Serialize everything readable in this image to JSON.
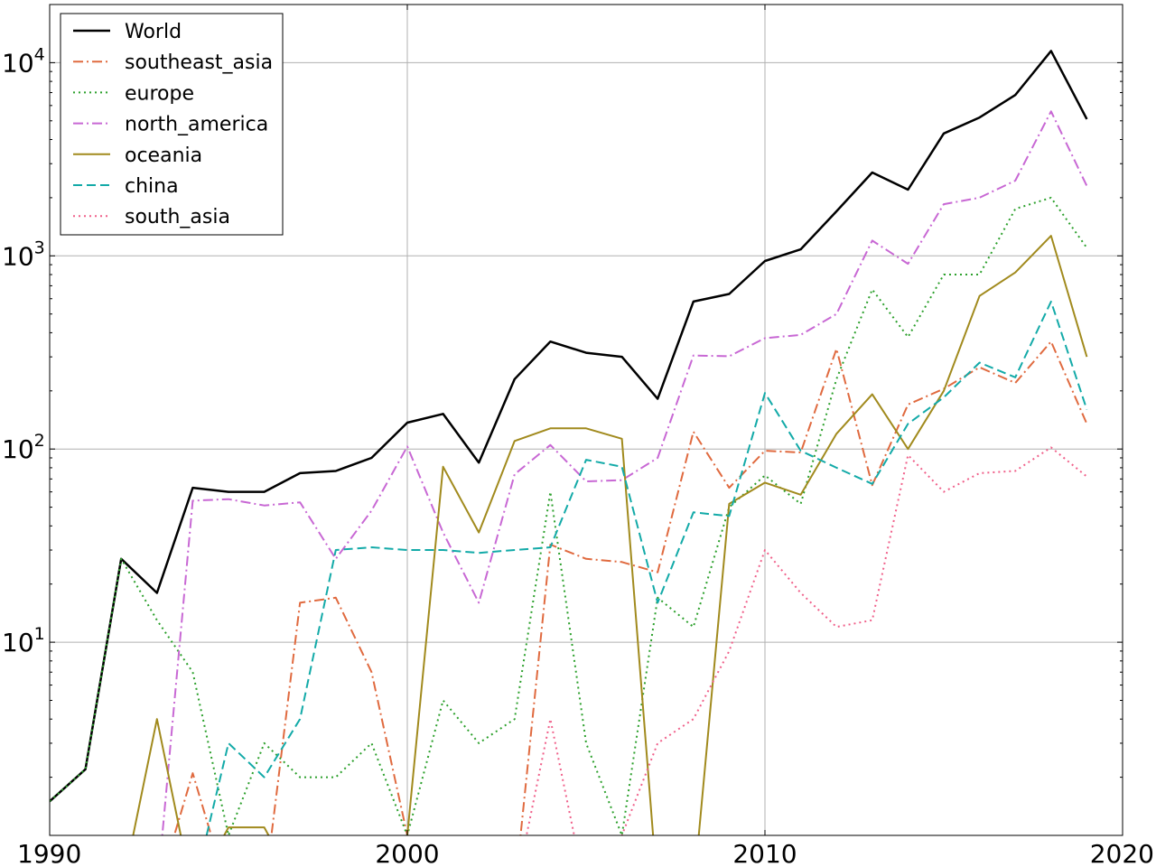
{
  "chart_data": {
    "type": "line",
    "title": "",
    "xlabel": "",
    "ylabel": "",
    "xlim": [
      1990,
      2020
    ],
    "ylim": [
      1,
      20000
    ],
    "yscale": "log",
    "grid": true,
    "legend_position": "top-left",
    "x_ticks": [
      {
        "value": 1990,
        "label": "1990"
      },
      {
        "value": 2000,
        "label": "2000"
      },
      {
        "value": 2010,
        "label": "2010"
      },
      {
        "value": 2020,
        "label": "2020"
      }
    ],
    "y_ticks": [
      {
        "value": 10,
        "base": "10",
        "exp": "1"
      },
      {
        "value": 100,
        "base": "10",
        "exp": "2"
      },
      {
        "value": 1000,
        "base": "10",
        "exp": "3"
      },
      {
        "value": 10000,
        "base": "10",
        "exp": "4"
      }
    ],
    "x": [
      1990,
      1991,
      1992,
      1993,
      1994,
      1995,
      1996,
      1997,
      1998,
      1999,
      2000,
      2001,
      2002,
      2003,
      2004,
      2005,
      2006,
      2007,
      2008,
      2009,
      2010,
      2011,
      2012,
      2013,
      2014,
      2015,
      2016,
      2017,
      2018,
      2019
    ],
    "series": [
      {
        "name": "World",
        "color": "#000000",
        "style": "solid",
        "width": 2.5,
        "values": [
          1.5,
          2.2,
          27,
          18,
          63,
          60,
          60,
          75,
          77,
          90,
          137,
          152,
          85,
          230,
          360,
          315,
          300,
          182,
          580,
          635,
          940,
          1080,
          1700,
          2700,
          2200,
          4300,
          5200,
          6800,
          11500,
          5100
        ]
      },
      {
        "name": "southeast_asia",
        "color": "#e06a3f",
        "style": "dashdot",
        "width": 2,
        "values": [
          null,
          null,
          null,
          null,
          2.1,
          null,
          null,
          16,
          17,
          7,
          1,
          null,
          null,
          null,
          32,
          27,
          26,
          23,
          123,
          63,
          98,
          96,
          330,
          65,
          170,
          205,
          265,
          220,
          360,
          135
        ]
      },
      {
        "name": "europe",
        "color": "#2ca02c",
        "style": "dotted",
        "width": 2,
        "values": [
          1.5,
          2.2,
          27,
          13,
          7,
          1,
          3,
          2,
          2,
          3,
          1,
          5,
          3,
          4,
          60,
          3,
          1,
          17,
          12,
          50,
          73,
          52,
          230,
          670,
          380,
          800,
          800,
          1750,
          2000,
          1100
        ]
      },
      {
        "name": "north_america",
        "color": "#c868d4",
        "style": "dashdot",
        "width": 2,
        "values": [
          null,
          null,
          null,
          null,
          54,
          55,
          51,
          53,
          27,
          48,
          103,
          37,
          16,
          74,
          105,
          68,
          69,
          90,
          305,
          302,
          375,
          390,
          500,
          1200,
          910,
          1850,
          2000,
          2450,
          5600,
          2300
        ]
      },
      {
        "name": "oceania",
        "color": "#a18a1d",
        "style": "solid",
        "width": 2,
        "values": [
          null,
          null,
          null,
          4,
          null,
          1.1,
          1.1,
          null,
          null,
          null,
          1,
          81,
          37,
          110,
          128,
          128,
          113,
          null,
          null,
          52,
          67,
          58,
          120,
          192,
          100,
          200,
          620,
          820,
          1270,
          300
        ]
      },
      {
        "name": "china",
        "color": "#13aaa8",
        "style": "dashed",
        "width": 2,
        "values": [
          null,
          null,
          null,
          null,
          null,
          3,
          2,
          4,
          30,
          31,
          30,
          30,
          29,
          30,
          31,
          88,
          81,
          16,
          47,
          45,
          195,
          98,
          80,
          66,
          135,
          185,
          280,
          235,
          580,
          160
        ]
      },
      {
        "name": "south_asia",
        "color": "#f0608a",
        "style": "dotted",
        "width": 2,
        "values": [
          null,
          null,
          null,
          null,
          null,
          null,
          null,
          null,
          null,
          null,
          null,
          null,
          null,
          null,
          4,
          null,
          1,
          3,
          4,
          9,
          30,
          18,
          12,
          13,
          93,
          60,
          75,
          77,
          102,
          72
        ]
      }
    ]
  }
}
